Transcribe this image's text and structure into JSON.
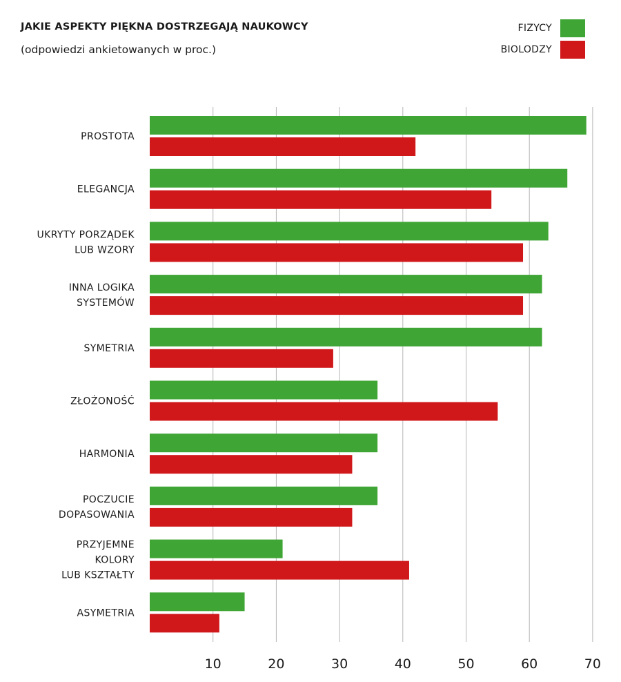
{
  "header": {
    "title": "JAKIE ASPEKTY PIĘKNA DOSTRZEGAJĄ NAUKOWCY",
    "subtitle": "(odpowiedzi ankietowanych w proc.)"
  },
  "legend": [
    {
      "label": "FIZYCY",
      "color": "#3fa535"
    },
    {
      "label": "BIOLODZY",
      "color": "#d0181b"
    }
  ],
  "chart_data": {
    "type": "bar",
    "orientation": "horizontal",
    "title": "JAKIE ASPEKTY PIĘKNA DOSTRZEGAJĄ NAUKOWCY",
    "subtitle": "(odpowiedzi ankietowanych w proc.)",
    "categories": [
      [
        "PROSTOTA"
      ],
      [
        "ELEGANCJA"
      ],
      [
        "UKRYTY PORZĄDEK",
        "LUB WZORY"
      ],
      [
        "INNA LOGIKA",
        "SYSTEMÓW"
      ],
      [
        "SYMETRIA"
      ],
      [
        "ZŁOŻONOŚĆ"
      ],
      [
        "HARMONIA"
      ],
      [
        "POCZUCIE",
        "DOPASOWANIA"
      ],
      [
        "PRZYJEMNE",
        "KOLORY",
        "LUB KSZTAŁTY"
      ],
      [
        "ASYMETRIA"
      ]
    ],
    "series": [
      {
        "name": "FIZYCY",
        "color": "#3fa535",
        "values": [
          69,
          66,
          63,
          62,
          62,
          36,
          36,
          36,
          21,
          15
        ]
      },
      {
        "name": "BIOLODZY",
        "color": "#d0181b",
        "values": [
          42,
          54,
          59,
          59,
          29,
          55,
          32,
          32,
          41,
          11
        ]
      }
    ],
    "xticks": [
      10,
      20,
      30,
      40,
      50,
      60,
      70
    ],
    "xlim": [
      0,
      70
    ],
    "grid": true,
    "legend_position": "top-right"
  }
}
